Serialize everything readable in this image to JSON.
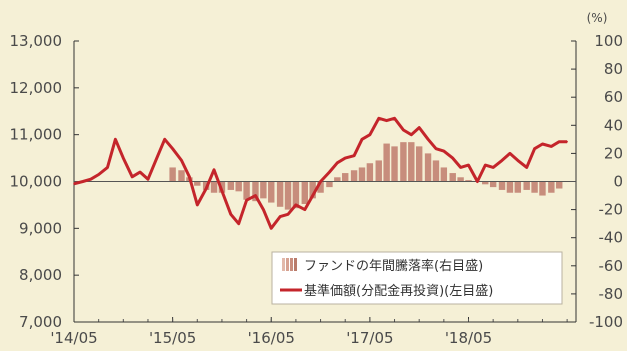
{
  "chart_data": {
    "type": "bar+line",
    "categories": [
      "'14/05",
      "'15/05",
      "'16/05",
      "'17/05",
      "'18/05"
    ],
    "y_left": {
      "ticks": [
        "7,000",
        "8,000",
        "9,000",
        "10,000",
        "11,000",
        "12,000",
        "13,000"
      ],
      "min": 7000,
      "max": 13000
    },
    "y_right": {
      "unit": "(%)",
      "ticks": [
        "-100",
        "-80",
        "-60",
        "-40",
        "-20",
        "0",
        "20",
        "40",
        "60",
        "80",
        "100"
      ],
      "min": -100,
      "max": 100
    },
    "grid": false,
    "legend_position": "bottom-right",
    "series": [
      {
        "name": "ファンドの年間騰落率(右目盛)",
        "kind": "bar",
        "axis": "right",
        "color": "#c78d7c",
        "x": [
          2015.33,
          2015.42,
          2015.5,
          2015.58,
          2015.67,
          2015.75,
          2015.83,
          2015.92,
          2016.0,
          2016.08,
          2016.17,
          2016.25,
          2016.33,
          2016.42,
          2016.5,
          2016.58,
          2016.67,
          2016.75,
          2016.83,
          2016.92,
          2017.0,
          2017.08,
          2017.17,
          2017.25,
          2017.33,
          2017.42,
          2017.5,
          2017.58,
          2017.67,
          2017.75,
          2017.83,
          2017.92,
          2018.0,
          2018.08,
          2018.17,
          2018.25,
          2018.33,
          2018.42,
          2018.5,
          2018.58,
          2018.67,
          2018.75,
          2018.83,
          2018.92,
          2019.0,
          2019.08,
          2019.17,
          2019.25
        ],
        "values": [
          10,
          8,
          3,
          -3,
          -6,
          -8,
          -8,
          -6,
          -7,
          -13,
          -14,
          -12,
          -15,
          -18,
          -20,
          -19,
          -16,
          -12,
          -8,
          -4,
          3,
          6,
          8,
          10,
          13,
          15,
          27,
          25,
          28,
          28,
          25,
          20,
          15,
          10,
          6,
          3,
          1,
          0,
          -2,
          -4,
          -6,
          -8,
          -8,
          -6,
          -8,
          -10,
          -8,
          -5
        ]
      },
      {
        "name": "基準価額(分配金再投資)(左目盛)",
        "kind": "line",
        "axis": "left",
        "color": "#c4252b",
        "x": [
          2014.33,
          2014.42,
          2014.5,
          2014.58,
          2014.67,
          2014.75,
          2014.83,
          2014.92,
          2015.0,
          2015.08,
          2015.17,
          2015.25,
          2015.33,
          2015.42,
          2015.5,
          2015.58,
          2015.67,
          2015.75,
          2015.83,
          2015.92,
          2016.0,
          2016.08,
          2016.17,
          2016.25,
          2016.33,
          2016.42,
          2016.5,
          2016.58,
          2016.67,
          2016.75,
          2016.83,
          2016.92,
          2017.0,
          2017.08,
          2017.17,
          2017.25,
          2017.33,
          2017.42,
          2017.5,
          2017.58,
          2017.67,
          2017.75,
          2017.83,
          2017.92,
          2018.0,
          2018.08,
          2018.17,
          2018.25,
          2018.33,
          2018.42,
          2018.5,
          2018.58,
          2018.67,
          2018.75,
          2018.83,
          2018.92,
          2019.0,
          2019.08,
          2019.17,
          2019.25,
          2019.33
        ],
        "values": [
          9950,
          10000,
          10050,
          10150,
          10300,
          10900,
          10500,
          10100,
          10200,
          10050,
          10500,
          10900,
          10700,
          10450,
          10100,
          9500,
          9850,
          10250,
          9800,
          9300,
          9100,
          9600,
          9700,
          9400,
          9000,
          9250,
          9300,
          9500,
          9400,
          9700,
          10000,
          10200,
          10400,
          10500,
          10550,
          10900,
          11000,
          11350,
          11300,
          11350,
          11100,
          11000,
          11150,
          10900,
          10700,
          10650,
          10500,
          10300,
          10350,
          10000,
          10350,
          10300,
          10450,
          10600,
          10450,
          10300,
          10700,
          10800,
          10750,
          10850,
          10850
        ]
      }
    ]
  }
}
